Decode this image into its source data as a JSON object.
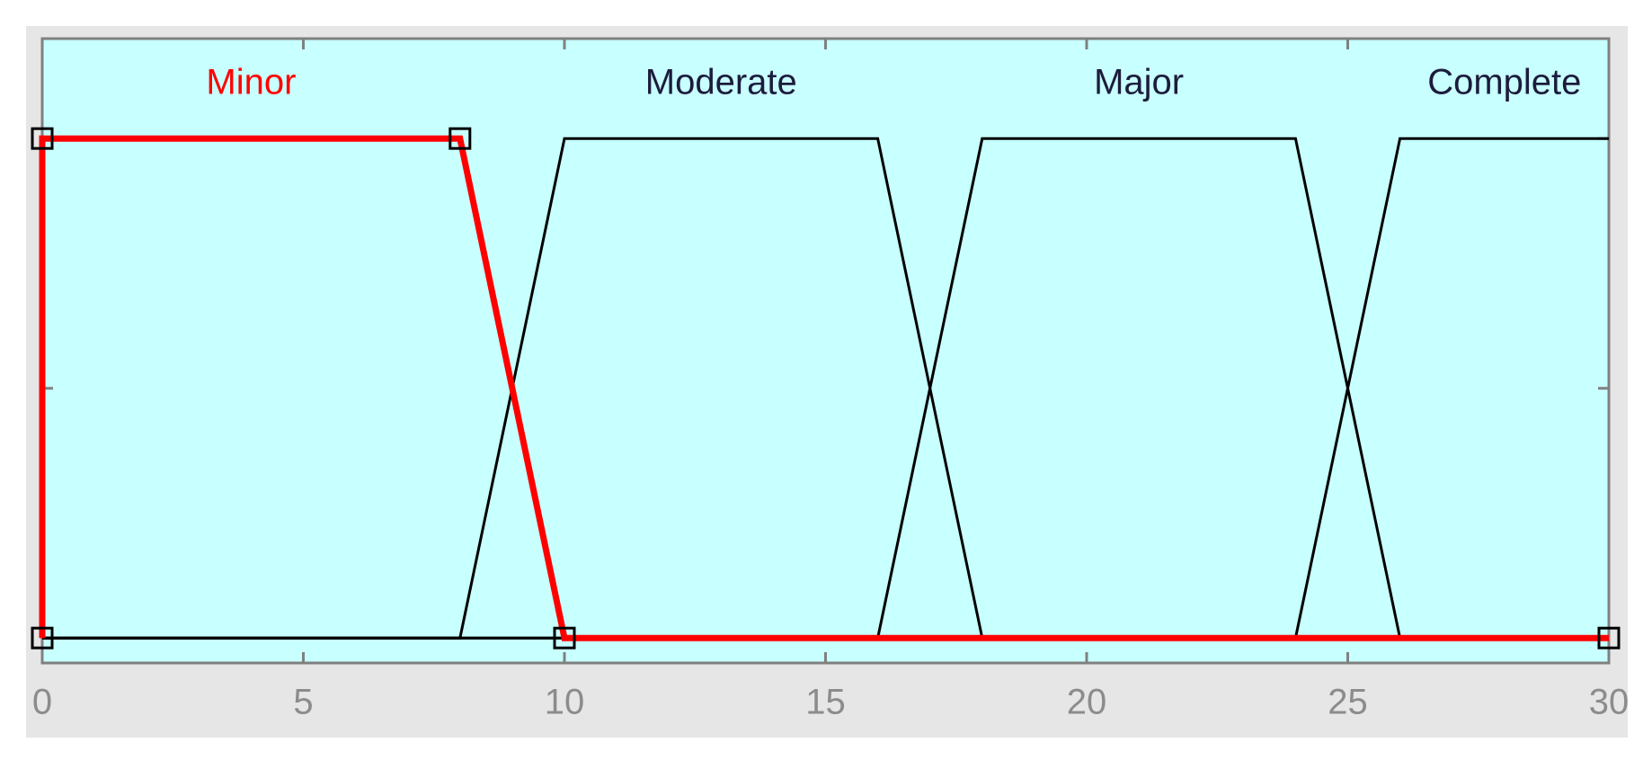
{
  "chart_data": {
    "type": "line",
    "xlim": [
      0,
      30
    ],
    "xticks": [
      0,
      5,
      10,
      15,
      20,
      25,
      30
    ],
    "ylim": [
      -0.05,
      1.2
    ],
    "yticks": [
      0,
      0.5,
      1
    ],
    "series": [
      {
        "name": "Moderate",
        "color": "#000000",
        "x": [
          0,
          8,
          10,
          16,
          18,
          30
        ],
        "values": [
          0,
          0,
          1,
          1,
          0,
          0
        ]
      },
      {
        "name": "Major",
        "color": "#000000",
        "x": [
          0,
          16,
          18,
          24,
          26,
          30
        ],
        "values": [
          0,
          0,
          1,
          1,
          0,
          0
        ]
      },
      {
        "name": "Complete",
        "color": "#000000",
        "x": [
          0,
          24,
          26,
          30
        ],
        "values": [
          0,
          0,
          1,
          1
        ]
      },
      {
        "name": "Minor",
        "color": "#ff0000",
        "x": [
          0,
          0,
          8,
          10,
          30
        ],
        "values": [
          0,
          1,
          1,
          0,
          0
        ],
        "markers": true
      }
    ]
  }
}
